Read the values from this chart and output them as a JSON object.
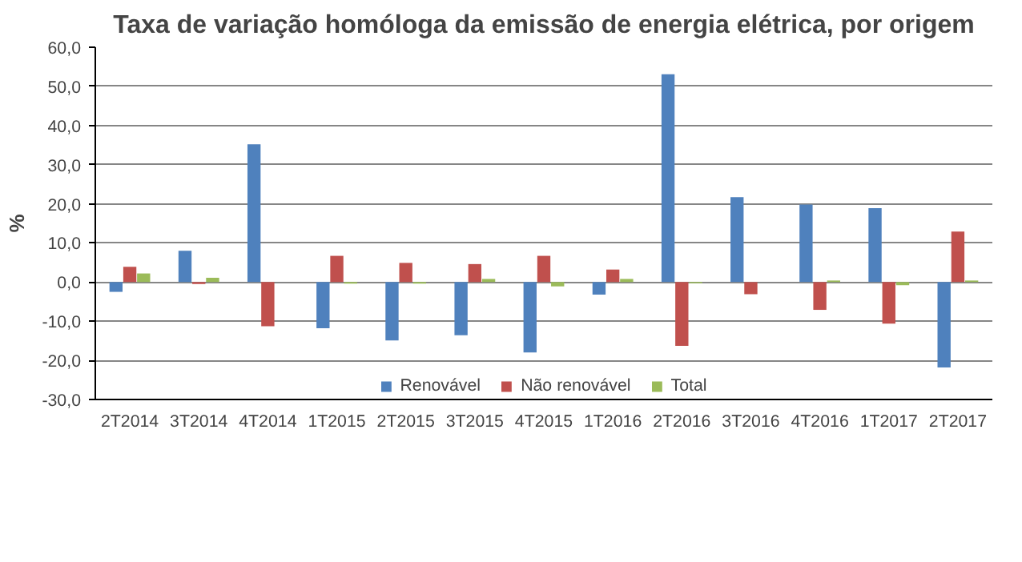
{
  "chart_data": {
    "type": "bar",
    "title": "Taxa de variação homóloga da emissão de energia elétrica, por origem",
    "ylabel": "%",
    "categories": [
      "2T2014",
      "3T2014",
      "4T2014",
      "1T2015",
      "2T2015",
      "3T2015",
      "4T2015",
      "1T2016",
      "2T2016",
      "3T2016",
      "4T2016",
      "1T2017",
      "2T2017"
    ],
    "series": [
      {
        "name": "Renovável",
        "color": "#4f81bd",
        "values": [
          -2.5,
          8.0,
          35.2,
          -11.8,
          -14.9,
          -13.6,
          -18.0,
          -3.2,
          53.1,
          21.7,
          19.8,
          18.9,
          -21.8
        ]
      },
      {
        "name": "Não renovável",
        "color": "#c0504d",
        "values": [
          3.9,
          -0.5,
          -11.3,
          6.7,
          4.9,
          4.6,
          6.7,
          3.2,
          -16.3,
          -3.1,
          -7.1,
          -10.6,
          12.9
        ]
      },
      {
        "name": "Total",
        "color": "#9bbb59",
        "values": [
          2.2,
          1.1,
          0.0,
          -0.4,
          -0.4,
          0.8,
          -1.1,
          0.8,
          -0.3,
          0.0,
          0.4,
          -0.8,
          0.4
        ]
      }
    ],
    "ylim": [
      -30,
      60
    ],
    "yticks": [
      {
        "value": -30,
        "label": "-30,0"
      },
      {
        "value": -20,
        "label": "-20,0"
      },
      {
        "value": -10,
        "label": "-10,0"
      },
      {
        "value": 0,
        "label": "0,0"
      },
      {
        "value": 10,
        "label": "10,0"
      },
      {
        "value": 20,
        "label": "20,0"
      },
      {
        "value": 30,
        "label": "30,0"
      },
      {
        "value": 40,
        "label": "40,0"
      },
      {
        "value": 50,
        "label": "50,0"
      },
      {
        "value": 60,
        "label": "60,0"
      }
    ],
    "grid": "y",
    "legend": "bottom"
  }
}
